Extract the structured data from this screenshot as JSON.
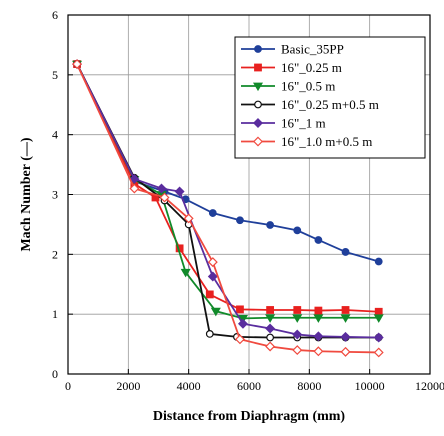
{
  "chart_data": {
    "type": "line",
    "title": "",
    "xlabel": "Distance from Diaphragm (mm)",
    "ylabel": "Mach Number (—)",
    "xlim": [
      0,
      12000
    ],
    "ylim": [
      0,
      6
    ],
    "xticks": [
      0,
      2000,
      4000,
      6000,
      8000,
      10000,
      12000
    ],
    "xtick_labels": [
      "0",
      "2000",
      "4000",
      "6000",
      "8000",
      "10000",
      "12000"
    ],
    "yticks": [
      0,
      1,
      2,
      3,
      4,
      5,
      6
    ],
    "ytick_labels": [
      "0",
      "1",
      "2",
      "3",
      "4",
      "5",
      "6"
    ],
    "grid": true,
    "legend_position": "top-right",
    "series": [
      {
        "name": "Basic_35PP",
        "color": "#1f3f9a",
        "marker": "circle",
        "filled": true,
        "x": [
          300,
          2200,
          3200,
          3900,
          4800,
          5700,
          6700,
          7600,
          8300,
          9200,
          10300
        ],
        "y": [
          5.18,
          3.22,
          3.05,
          2.92,
          2.69,
          2.57,
          2.49,
          2.4,
          2.24,
          2.04,
          1.88
        ]
      },
      {
        "name": "16\"_0.25 m",
        "color": "#e8211f",
        "marker": "square",
        "filled": true,
        "x": [
          300,
          2200,
          2900,
          3700,
          4700,
          5700,
          6700,
          7600,
          8300,
          9200,
          10300
        ],
        "y": [
          5.18,
          3.18,
          2.95,
          2.1,
          1.33,
          1.08,
          1.07,
          1.07,
          1.06,
          1.07,
          1.04
        ]
      },
      {
        "name": "16\"_0.5 m",
        "color": "#118a2a",
        "marker": "triangle-down",
        "filled": true,
        "x": [
          300,
          2200,
          3100,
          3900,
          4900,
          5800,
          6700,
          7600,
          8300,
          9200,
          10300
        ],
        "y": [
          5.18,
          3.25,
          3.0,
          1.7,
          1.05,
          0.93,
          0.94,
          0.94,
          0.94,
          0.94,
          0.94
        ]
      },
      {
        "name": "16\"_0.25 m+0.5 m",
        "color": "#111111",
        "marker": "circle",
        "filled": false,
        "x": [
          300,
          2200,
          3200,
          4000,
          4700,
          5600,
          6700,
          7600,
          8300,
          9200,
          10300
        ],
        "y": [
          5.18,
          3.28,
          2.9,
          2.5,
          0.67,
          0.62,
          0.61,
          0.61,
          0.61,
          0.61,
          0.61
        ]
      },
      {
        "name": "16\"_1 m",
        "color": "#5a2d9e",
        "marker": "diamond",
        "filled": true,
        "x": [
          300,
          2200,
          3100,
          3700,
          4800,
          5800,
          6700,
          7600,
          8300,
          9200,
          10300
        ],
        "y": [
          5.18,
          3.26,
          3.1,
          3.05,
          1.63,
          0.84,
          0.76,
          0.66,
          0.63,
          0.62,
          0.61
        ]
      },
      {
        "name": "16\"_1.0 m+0.5 m",
        "color": "#f04a3f",
        "marker": "diamond",
        "filled": false,
        "x": [
          300,
          2200,
          3200,
          4000,
          4800,
          5700,
          6700,
          7600,
          8300,
          9200,
          10300
        ],
        "y": [
          5.18,
          3.1,
          2.95,
          2.6,
          1.87,
          0.58,
          0.46,
          0.4,
          0.38,
          0.37,
          0.36
        ]
      }
    ]
  }
}
